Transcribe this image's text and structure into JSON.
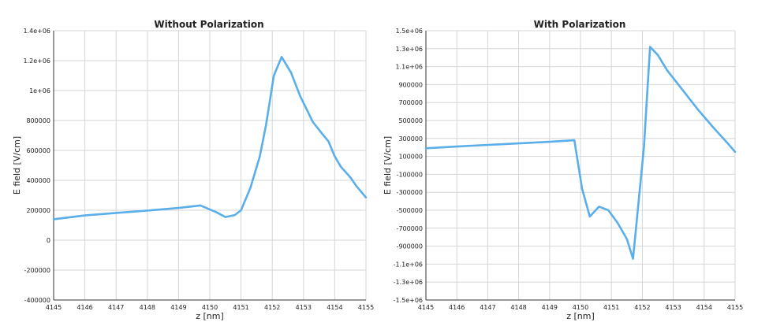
{
  "chart_data": [
    {
      "type": "line",
      "title": "Without Polarization",
      "xlabel": "z [nm]",
      "ylabel": "E field [V/cm]",
      "xlim": [
        4145,
        4155
      ],
      "ylim": [
        -400000,
        1400000
      ],
      "xticks": [
        "4145",
        "4146",
        "4147",
        "4148",
        "4149",
        "4150",
        "4151",
        "4152",
        "4153",
        "4154",
        "4155"
      ],
      "yticks": [
        {
          "v": 1400000,
          "label": "1.4e+06"
        },
        {
          "v": 1200000,
          "label": "1.2e+06"
        },
        {
          "v": 1000000,
          "label": "1e+06"
        },
        {
          "v": 800000,
          "label": "800000"
        },
        {
          "v": 600000,
          "label": "600000"
        },
        {
          "v": 400000,
          "label": "400000"
        },
        {
          "v": 200000,
          "label": "200000"
        },
        {
          "v": 0,
          "label": "0"
        },
        {
          "v": -200000,
          "label": "-200000"
        },
        {
          "v": -400000,
          "label": "-400000"
        }
      ],
      "grid": true,
      "color": "#5aaeea",
      "series": [
        {
          "x": [
            4145,
            4146,
            4147,
            4148,
            4149,
            4149.7,
            4150.2,
            4150.5,
            4150.8,
            4151,
            4151.3,
            4151.6,
            4151.8,
            4152.05,
            4152.3,
            4152.6,
            4152.9,
            4153.3,
            4153.6,
            4153.8,
            4154,
            4154.2,
            4154.5,
            4154.7,
            4155
          ],
          "y": [
            140000,
            165000,
            182000,
            198000,
            215000,
            232000,
            188000,
            155000,
            168000,
            200000,
            350000,
            560000,
            770000,
            1100000,
            1225000,
            1120000,
            960000,
            790000,
            710000,
            660000,
            560000,
            490000,
            420000,
            360000,
            285000
          ]
        }
      ]
    },
    {
      "type": "line",
      "title": "With Polarization",
      "xlabel": "z [nm]",
      "ylabel": "E field [V/cm]",
      "xlim": [
        4145,
        4155
      ],
      "ylim": [
        -1500000,
        1500000
      ],
      "xticks": [
        "4145",
        "4146",
        "4147",
        "4148",
        "4149",
        "4150",
        "4151",
        "4152",
        "4153",
        "4154",
        "4155"
      ],
      "yticks": [
        {
          "v": 1500000,
          "label": "1.5e+06"
        },
        {
          "v": 1300000,
          "label": "1.3e+06"
        },
        {
          "v": 1100000,
          "label": "1.1e+06"
        },
        {
          "v": 900000,
          "label": "900000"
        },
        {
          "v": 700000,
          "label": "700000"
        },
        {
          "v": 500000,
          "label": "500000"
        },
        {
          "v": 300000,
          "label": "300000"
        },
        {
          "v": 100000,
          "label": "100000"
        },
        {
          "v": -100000,
          "label": "-100000"
        },
        {
          "v": -300000,
          "label": "-300000"
        },
        {
          "v": -500000,
          "label": "-500000"
        },
        {
          "v": -700000,
          "label": "-700000"
        },
        {
          "v": -900000,
          "label": "-900000"
        },
        {
          "v": -1100000,
          "label": "-1.1e+06"
        },
        {
          "v": -1300000,
          "label": "-1.3e+06"
        },
        {
          "v": -1500000,
          "label": "-1.5e+06"
        }
      ],
      "grid": true,
      "color": "#5aaeea",
      "series": [
        {
          "x": [
            4145,
            4146,
            4147,
            4148,
            4149,
            4149.8,
            4150.05,
            4150.3,
            4150.6,
            4150.9,
            4151.2,
            4151.5,
            4151.7,
            4152.05,
            4152.25,
            4152.5,
            4152.8,
            4153.3,
            4153.8,
            4154.3,
            4154.8,
            4155
          ],
          "y": [
            190000,
            210000,
            228000,
            245000,
            262000,
            280000,
            -260000,
            -570000,
            -460000,
            -500000,
            -640000,
            -820000,
            -1040000,
            200000,
            1320000,
            1230000,
            1060000,
            840000,
            620000,
            420000,
            230000,
            150000
          ]
        }
      ]
    }
  ]
}
